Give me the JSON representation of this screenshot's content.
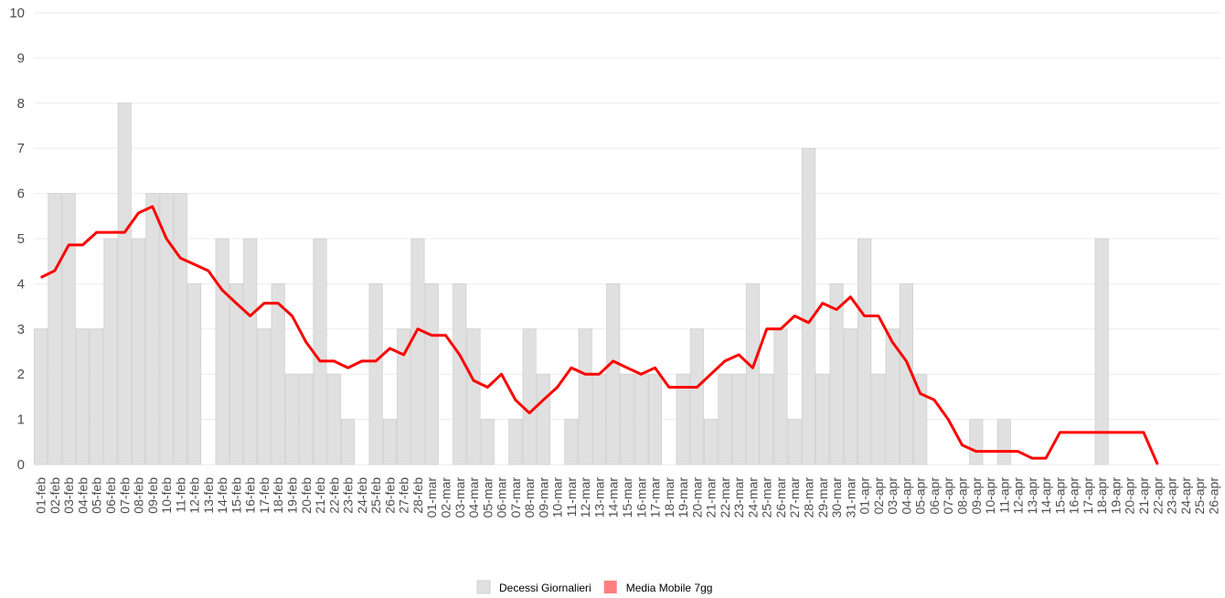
{
  "chart_data": {
    "type": "bar",
    "categories": [
      "01-feb",
      "02-feb",
      "03-feb",
      "04-feb",
      "05-feb",
      "06-feb",
      "07-feb",
      "08-feb",
      "09-feb",
      "10-feb",
      "11-feb",
      "12-feb",
      "13-feb",
      "14-feb",
      "15-feb",
      "16-feb",
      "17-feb",
      "18-feb",
      "19-feb",
      "20-feb",
      "21-feb",
      "22-feb",
      "23-feb",
      "24-feb",
      "25-feb",
      "26-feb",
      "27-feb",
      "28-feb",
      "01-mar",
      "02-mar",
      "03-mar",
      "04-mar",
      "05-mar",
      "06-mar",
      "07-mar",
      "08-mar",
      "09-mar",
      "10-mar",
      "11-mar",
      "12-mar",
      "13-mar",
      "14-mar",
      "15-mar",
      "16-mar",
      "17-mar",
      "18-mar",
      "19-mar",
      "20-mar",
      "21-mar",
      "22-mar",
      "23-mar",
      "24-mar",
      "25-mar",
      "26-mar",
      "27-mar",
      "28-mar",
      "29-mar",
      "30-mar",
      "31-mar",
      "01-apr",
      "02-apr",
      "03-apr",
      "04-apr",
      "05-apr",
      "06-apr",
      "07-apr",
      "08-apr",
      "09-apr",
      "10-apr",
      "11-apr",
      "12-apr",
      "13-apr",
      "14-apr",
      "15-apr",
      "16-apr",
      "17-apr",
      "18-apr",
      "19-apr",
      "20-apr",
      "21-apr",
      "22-apr",
      "23-apr",
      "24-apr",
      "25-apr",
      "26-apr"
    ],
    "series": [
      {
        "name": "Decessi Giornalieri",
        "type": "bar",
        "color": "#e0e0e0",
        "values": [
          3,
          6,
          6,
          3,
          3,
          5,
          8,
          5,
          6,
          6,
          6,
          4,
          0,
          5,
          4,
          5,
          3,
          4,
          2,
          2,
          5,
          2,
          1,
          0,
          4,
          1,
          3,
          5,
          4,
          0,
          4,
          3,
          1,
          0,
          1,
          3,
          2,
          0,
          1,
          3,
          2,
          4,
          2,
          2,
          2,
          0,
          2,
          3,
          1,
          2,
          2,
          4,
          2,
          3,
          1,
          7,
          2,
          4,
          3,
          5,
          2,
          3,
          4,
          2,
          0,
          0,
          0,
          1,
          0,
          1,
          0,
          0,
          0,
          0,
          0,
          0,
          5,
          0,
          0,
          0,
          0,
          0,
          0,
          0,
          0
        ]
      },
      {
        "name": "Media Mobile 7gg",
        "type": "line",
        "color": "#ff0000",
        "values": [
          4.14,
          4.29,
          4.86,
          4.86,
          5.14,
          5.14,
          5.14,
          5.57,
          5.71,
          5.0,
          4.57,
          4.43,
          4.29,
          3.86,
          3.57,
          3.29,
          3.57,
          3.57,
          3.29,
          2.71,
          2.29,
          2.29,
          2.14,
          2.29,
          2.29,
          2.57,
          2.43,
          3.0,
          2.86,
          2.86,
          2.43,
          1.86,
          1.71,
          2.0,
          1.43,
          1.14,
          1.43,
          1.71,
          2.14,
          2.0,
          2.0,
          2.29,
          2.14,
          2.0,
          2.14,
          1.71,
          1.71,
          1.71,
          2.0,
          2.29,
          2.43,
          2.14,
          3.0,
          3.0,
          3.29,
          3.14,
          3.57,
          3.43,
          3.71,
          3.29,
          3.29,
          2.71,
          2.29,
          1.57,
          1.43,
          1.0,
          0.43,
          0.29,
          0.29,
          0.29,
          0.29,
          0.14,
          0.14,
          0.71,
          0.71,
          0.71,
          0.71,
          0.71,
          0.71,
          0.71,
          0,
          null,
          null,
          null,
          null
        ]
      }
    ],
    "ylim": [
      0,
      10
    ],
    "yticks": [
      0,
      1,
      2,
      3,
      4,
      5,
      6,
      7,
      8,
      9,
      10
    ],
    "grid": true,
    "legend": "bottom"
  }
}
